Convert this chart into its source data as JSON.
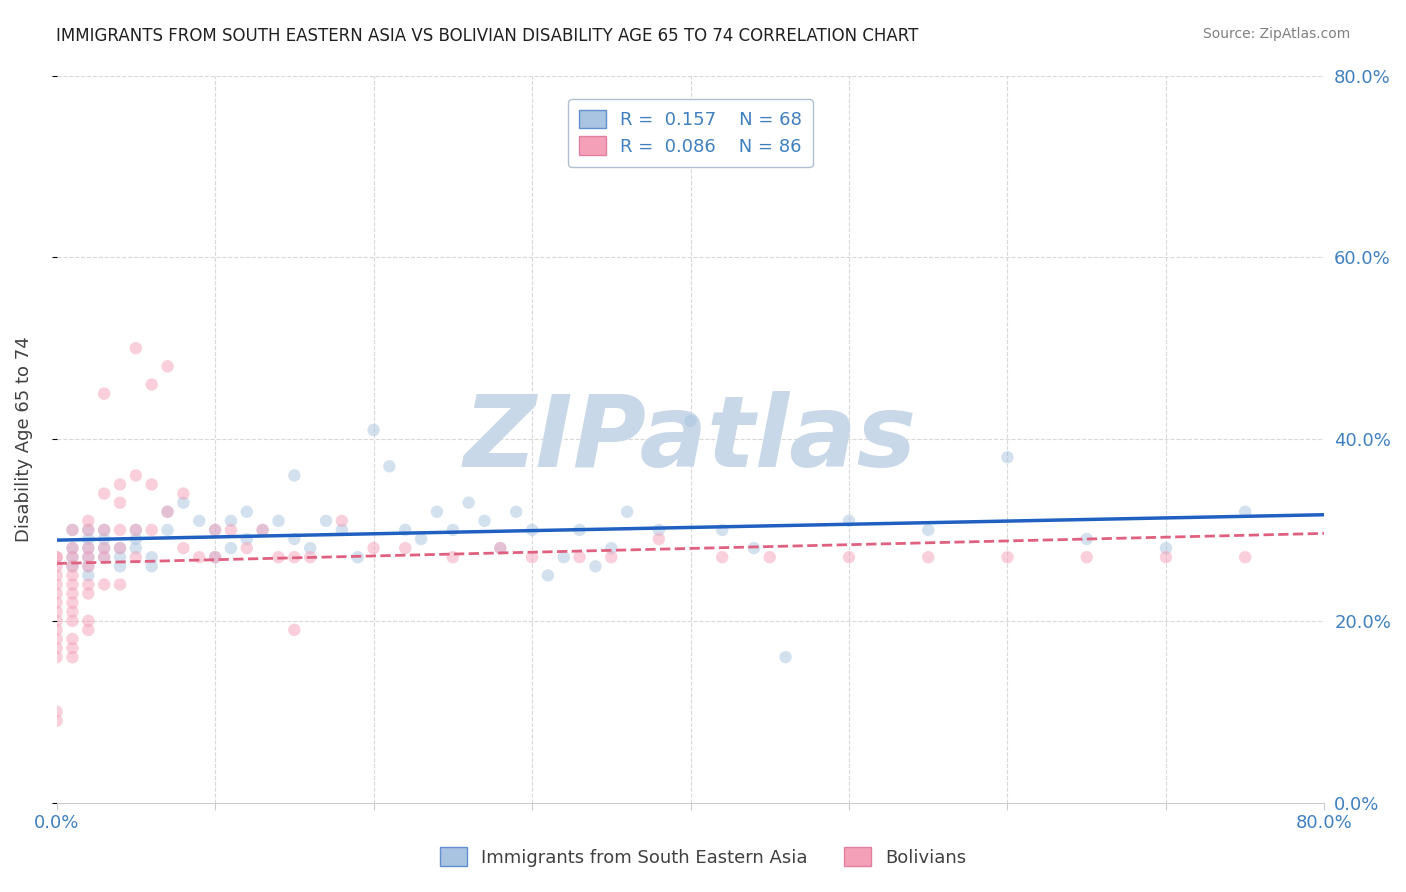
{
  "title": "IMMIGRANTS FROM SOUTH EASTERN ASIA VS BOLIVIAN DISABILITY AGE 65 TO 74 CORRELATION CHART",
  "source": "Source: ZipAtlas.com",
  "ylabel": "Disability Age 65 to 74",
  "xmin": 0.0,
  "xmax": 0.8,
  "ymin": 0.0,
  "ymax": 0.8,
  "legend_entries": [
    {
      "label": "Immigrants from South Eastern Asia",
      "R": 0.157,
      "N": 68,
      "color": "#a8c4e0",
      "line_color": "#2060c0"
    },
    {
      "label": "Bolivians",
      "R": 0.086,
      "N": 86,
      "color": "#f4a0b8",
      "line_color": "#e06080"
    }
  ],
  "blue_scatter_x": [
    0.01,
    0.01,
    0.01,
    0.01,
    0.02,
    0.02,
    0.02,
    0.02,
    0.02,
    0.02,
    0.03,
    0.03,
    0.03,
    0.03,
    0.04,
    0.04,
    0.04,
    0.05,
    0.05,
    0.05,
    0.06,
    0.06,
    0.07,
    0.07,
    0.08,
    0.09,
    0.1,
    0.1,
    0.11,
    0.11,
    0.12,
    0.12,
    0.13,
    0.14,
    0.15,
    0.15,
    0.16,
    0.17,
    0.18,
    0.19,
    0.2,
    0.21,
    0.22,
    0.23,
    0.24,
    0.25,
    0.26,
    0.27,
    0.28,
    0.29,
    0.3,
    0.31,
    0.32,
    0.33,
    0.34,
    0.35,
    0.36,
    0.38,
    0.4,
    0.42,
    0.44,
    0.46,
    0.5,
    0.55,
    0.6,
    0.65,
    0.7,
    0.75
  ],
  "blue_scatter_y": [
    0.28,
    0.3,
    0.27,
    0.26,
    0.29,
    0.28,
    0.27,
    0.3,
    0.26,
    0.25,
    0.29,
    0.27,
    0.28,
    0.3,
    0.28,
    0.27,
    0.26,
    0.3,
    0.29,
    0.28,
    0.27,
    0.26,
    0.32,
    0.3,
    0.33,
    0.31,
    0.3,
    0.27,
    0.31,
    0.28,
    0.32,
    0.29,
    0.3,
    0.31,
    0.36,
    0.29,
    0.28,
    0.31,
    0.3,
    0.27,
    0.41,
    0.37,
    0.3,
    0.29,
    0.32,
    0.3,
    0.33,
    0.31,
    0.28,
    0.32,
    0.3,
    0.25,
    0.27,
    0.3,
    0.26,
    0.28,
    0.32,
    0.3,
    0.42,
    0.3,
    0.28,
    0.16,
    0.31,
    0.3,
    0.38,
    0.29,
    0.28,
    0.32
  ],
  "pink_scatter_x": [
    0.0,
    0.0,
    0.0,
    0.0,
    0.0,
    0.0,
    0.0,
    0.0,
    0.0,
    0.0,
    0.0,
    0.0,
    0.0,
    0.0,
    0.0,
    0.01,
    0.01,
    0.01,
    0.01,
    0.01,
    0.01,
    0.01,
    0.01,
    0.01,
    0.01,
    0.01,
    0.01,
    0.01,
    0.02,
    0.02,
    0.02,
    0.02,
    0.02,
    0.02,
    0.02,
    0.02,
    0.02,
    0.03,
    0.03,
    0.03,
    0.03,
    0.03,
    0.03,
    0.04,
    0.04,
    0.04,
    0.04,
    0.04,
    0.05,
    0.05,
    0.05,
    0.05,
    0.06,
    0.06,
    0.06,
    0.07,
    0.07,
    0.08,
    0.08,
    0.09,
    0.1,
    0.1,
    0.11,
    0.12,
    0.13,
    0.14,
    0.15,
    0.15,
    0.16,
    0.18,
    0.2,
    0.22,
    0.25,
    0.28,
    0.3,
    0.33,
    0.35,
    0.38,
    0.42,
    0.45,
    0.5,
    0.55,
    0.6,
    0.65,
    0.7,
    0.75
  ],
  "pink_scatter_y": [
    0.27,
    0.27,
    0.26,
    0.25,
    0.24,
    0.23,
    0.22,
    0.21,
    0.2,
    0.19,
    0.18,
    0.17,
    0.16,
    0.1,
    0.09,
    0.3,
    0.28,
    0.27,
    0.26,
    0.25,
    0.24,
    0.23,
    0.22,
    0.21,
    0.2,
    0.18,
    0.17,
    0.16,
    0.31,
    0.3,
    0.28,
    0.27,
    0.26,
    0.24,
    0.23,
    0.2,
    0.19,
    0.45,
    0.34,
    0.3,
    0.28,
    0.27,
    0.24,
    0.35,
    0.33,
    0.3,
    0.28,
    0.24,
    0.5,
    0.36,
    0.3,
    0.27,
    0.46,
    0.35,
    0.3,
    0.48,
    0.32,
    0.34,
    0.28,
    0.27,
    0.3,
    0.27,
    0.3,
    0.28,
    0.3,
    0.27,
    0.19,
    0.27,
    0.27,
    0.31,
    0.28,
    0.28,
    0.27,
    0.28,
    0.27,
    0.27,
    0.27,
    0.29,
    0.27,
    0.27,
    0.27,
    0.27,
    0.27,
    0.27,
    0.27,
    0.27
  ],
  "watermark": "ZIPatlas",
  "watermark_color": "#c8d8e8",
  "bg_color": "#ffffff",
  "grid_color": "#d8d8d8",
  "title_color": "#202020",
  "tick_label_color": "#4080c0",
  "scatter_size": 80,
  "scatter_alpha": 0.5
}
